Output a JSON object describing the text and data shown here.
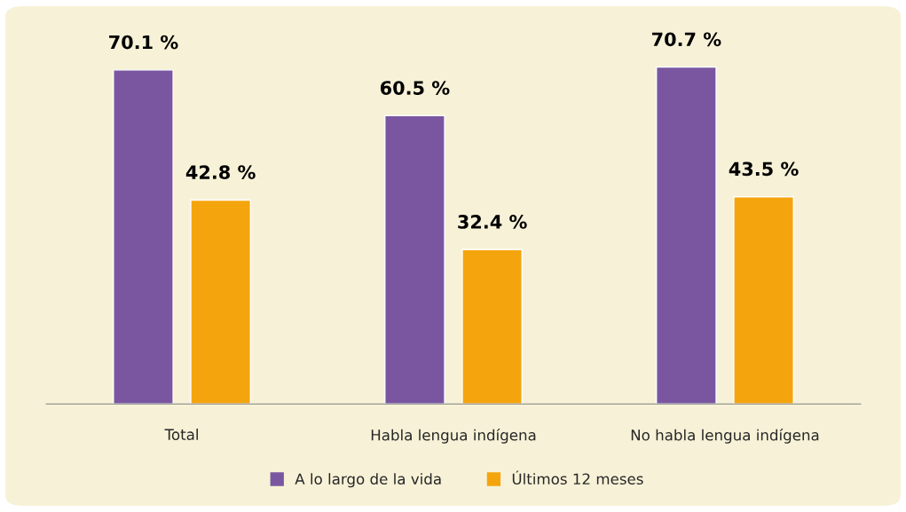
{
  "chart_data": {
    "type": "bar",
    "categories": [
      "Total",
      "Habla lengua indígena",
      "No habla lengua indígena"
    ],
    "series": [
      {
        "name": "A lo largo de la vida",
        "color": "#7a56a1",
        "values": [
          70.1,
          60.5,
          70.7
        ],
        "value_labels": [
          "70.1 %",
          "60.5 %",
          "70.7 %"
        ]
      },
      {
        "name": "Últimos 12 meses",
        "color": "#f4a50d",
        "values": [
          42.8,
          32.4,
          43.5
        ],
        "value_labels": [
          "42.8 %",
          "32.4 %",
          "43.5 %"
        ]
      }
    ],
    "legend": "bottom",
    "grid": false
  }
}
